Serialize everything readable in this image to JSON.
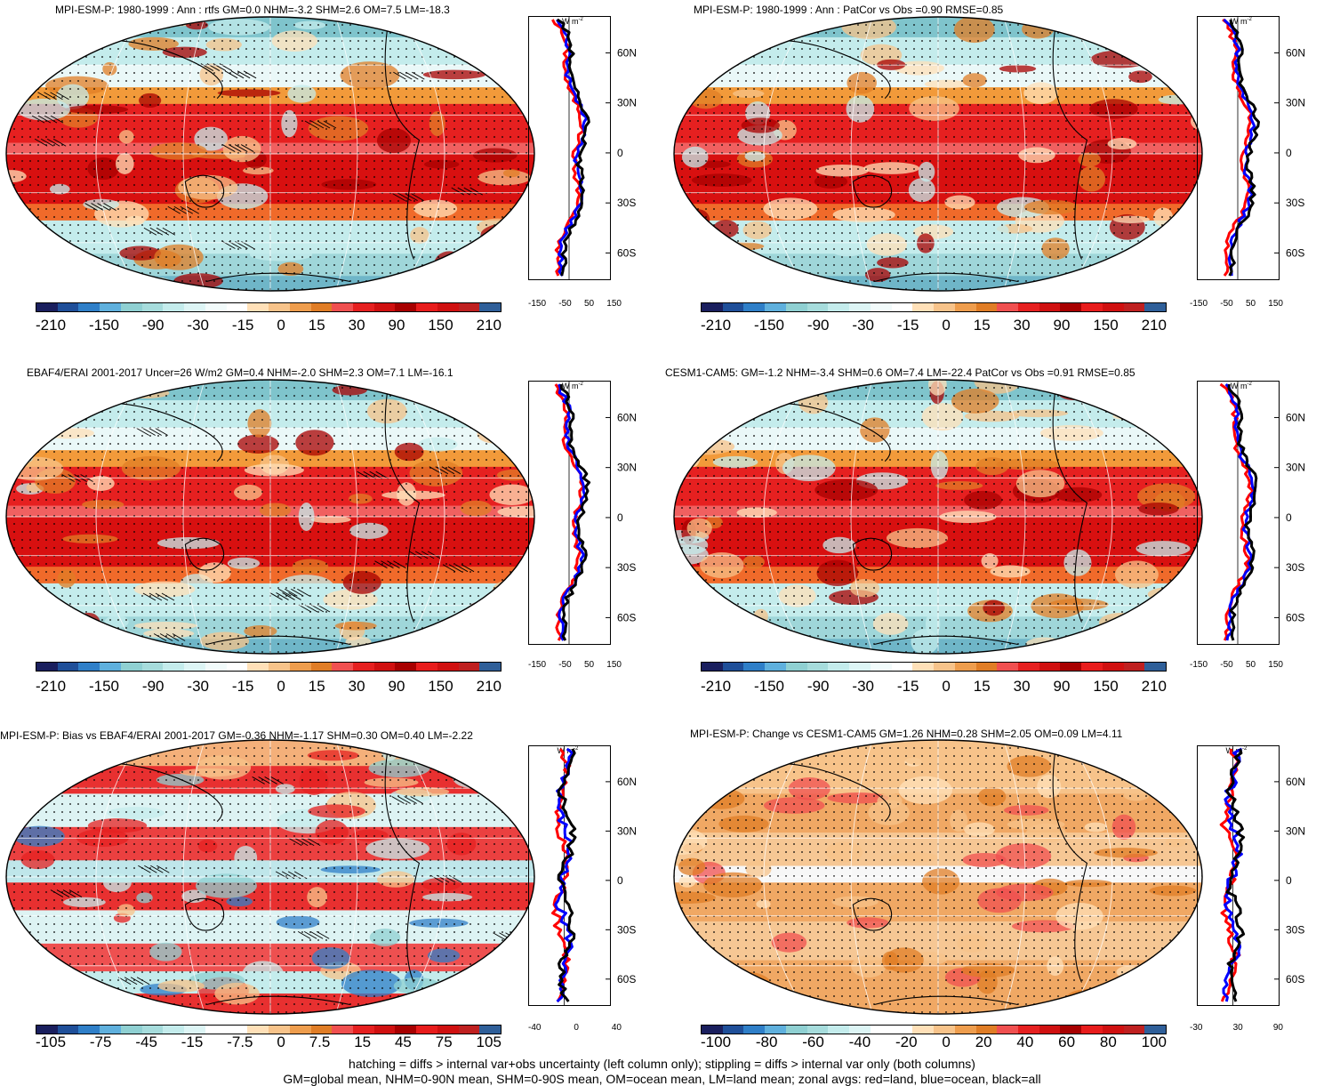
{
  "panels": [
    {
      "id": "p1",
      "title": "MPI-ESM-P: 1980-1999 : Ann : rtfs GM=0.0 NHM=-3.2 SHM=2.6 OM=7.5 LM=-18.3",
      "colorbar_labels": [
        "-210",
        "-150",
        "-90",
        "-30",
        "-15",
        "0",
        "15",
        "30",
        "90",
        "150",
        "210"
      ],
      "profile_x_ticks": [
        "-150",
        "-50",
        "50",
        "150"
      ],
      "hatched": true,
      "kind": "mean"
    },
    {
      "id": "p2",
      "title": "MPI-ESM-P: 1980-1999 : Ann : PatCor vs Obs =0.90 RMSE=0.85",
      "colorbar_labels": [
        "-210",
        "-150",
        "-90",
        "-30",
        "-15",
        "0",
        "15",
        "30",
        "90",
        "150",
        "210"
      ],
      "profile_x_ticks": [
        "-150",
        "-50",
        "50",
        "150"
      ],
      "hatched": false,
      "kind": "mean"
    },
    {
      "id": "p3",
      "title": "EBAF4/ERAI 2001-2017 Uncer=26 W/m2 GM=0.4 NHM=-2.0 SHM=2.3 OM=7.1 LM=-16.1",
      "colorbar_labels": [
        "-210",
        "-150",
        "-90",
        "-30",
        "-15",
        "0",
        "15",
        "30",
        "90",
        "150",
        "210"
      ],
      "profile_x_ticks": [
        "-150",
        "-50",
        "50",
        "150"
      ],
      "hatched": true,
      "kind": "mean"
    },
    {
      "id": "p4",
      "title": "CESM1-CAM5: GM=-1.2 NHM=-3.4 SHM=0.6 OM=7.4 LM=-22.4 PatCor vs Obs =0.91 RMSE=0.85",
      "colorbar_labels": [
        "-210",
        "-150",
        "-90",
        "-30",
        "-15",
        "0",
        "15",
        "30",
        "90",
        "150",
        "210"
      ],
      "profile_x_ticks": [
        "-150",
        "-50",
        "50",
        "150"
      ],
      "hatched": false,
      "kind": "mean"
    },
    {
      "id": "p5",
      "title": "MPI-ESM-P: Bias vs EBAF4/ERAI 2001-2017 GM=-0.36 NHM=-1.17 SHM=0.30 OM=0.40 LM=-2.22",
      "colorbar_labels": [
        "-105",
        "-75",
        "-45",
        "-15",
        "-7.5",
        "0",
        "7.5",
        "15",
        "45",
        "75",
        "105"
      ],
      "profile_x_ticks": [
        "-40",
        "0",
        "40"
      ],
      "hatched": true,
      "kind": "bias"
    },
    {
      "id": "p6",
      "title": "MPI-ESM-P: Change vs CESM1-CAM5 GM=1.26 NHM=0.28 SHM=2.05 OM=0.09 LM=4.11",
      "colorbar_labels": [
        "-100",
        "-80",
        "-60",
        "-40",
        "-20",
        "0",
        "20",
        "40",
        "60",
        "80",
        "100"
      ],
      "profile_x_ticks": [
        "-30",
        "30",
        "90"
      ],
      "hatched": false,
      "kind": "change"
    }
  ],
  "units_label": "W m",
  "units_exponent": "-2",
  "latitude_ticks": [
    "60N",
    "30N",
    "0",
    "30S",
    "60S"
  ],
  "colors": {
    "mean_scale": [
      "#1a1f5e",
      "#1f4f99",
      "#2f7fc8",
      "#5fb0dd",
      "#8fd0d2",
      "#a6dcdc",
      "#c4ecec",
      "#ddf5f5",
      "#f2fbfb",
      "#ffffff",
      "#ffe0b8",
      "#f7c38a",
      "#ee9d4d",
      "#e07d26",
      "#f05050",
      "#e62020",
      "#d01010",
      "#a80000",
      "#e81c1c",
      "#d01010",
      "#bf2020",
      "#2f5f99"
    ],
    "change_scale": [
      "#1a1f5e",
      "#1f4f99",
      "#2f7fc8",
      "#5fb0dd",
      "#8fd0d2",
      "#a6dcdc",
      "#c4ecec",
      "#ddf5f5",
      "#ffffff",
      "#ffffff",
      "#ffe0b8",
      "#f7c38a",
      "#ee9d4d",
      "#e07d26",
      "#f05050",
      "#e62020",
      "#d01010",
      "#a80000",
      "#e81c1c",
      "#d01010",
      "#bf2020",
      "#2f5f99"
    ],
    "land_line": "#ff0000",
    "ocean_line": "#0000ff",
    "all_line": "#000000"
  },
  "footer": {
    "line1": "hatching = diffs > internal var+obs uncertainty (left column only); stippling = diffs > internal var only (both columns)",
    "line2": "GM=global mean, NHM=0-90N mean, SHM=0-90S mean, OM=ocean mean, LM=land mean; zonal avgs: red=land, blue=ocean, black=all"
  }
}
